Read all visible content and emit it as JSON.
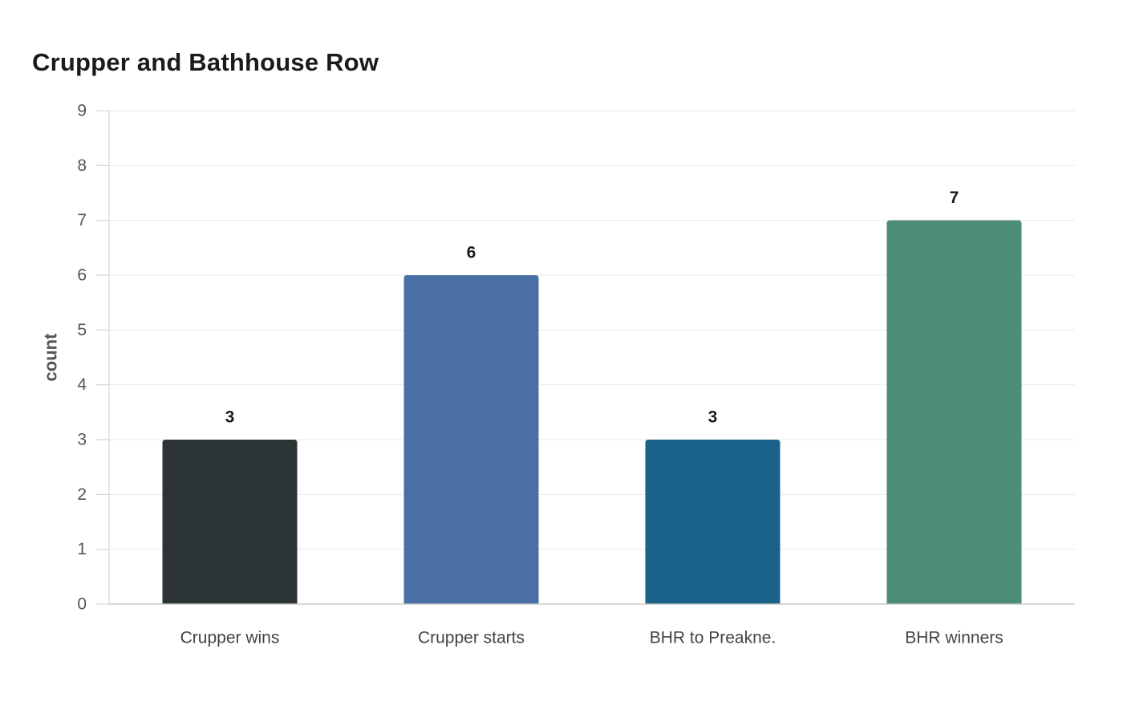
{
  "chart_data": {
    "type": "bar",
    "title": "Crupper and Bathhouse Row",
    "xlabel": "",
    "ylabel": "count",
    "categories": [
      "Crupper wins",
      "Crupper starts",
      "BHR to Preakne.",
      "BHR winners"
    ],
    "values": [
      3,
      6,
      3,
      7
    ],
    "colors": [
      "#2d3436",
      "#4a6fa5",
      "#1a6289",
      "#4e8c7a"
    ],
    "ylim": [
      0,
      9
    ],
    "yticks": [
      0,
      1,
      2,
      3,
      4,
      5,
      6,
      7,
      8,
      9
    ],
    "grid": true,
    "legend": "none",
    "data_labels": true
  }
}
